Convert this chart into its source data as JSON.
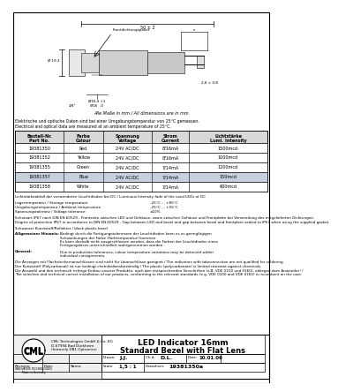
{
  "title": "LED Indicator 16mm\nStandard Bezel with Flat Lens",
  "company_name": "CML",
  "company_full": "CML Technologies GmbH & Co. KG\nD-67994 Bad Dürkheim\n(formerly DB1 Optronics)",
  "drawn_by": "J.J.",
  "checked_by": "D.L.",
  "date": "10.01.06",
  "scale": "1,5 : 1",
  "datasheet": "19381350a",
  "german_note1": "Elektrische und optische Daten sind bei einer Umgebungstemperatur von 25°C gemessen.",
  "english_note1": "Electrical and optical data are measured at an ambient temperature of 25°C.",
  "table_headers_line1": [
    "Bestell-Nr.",
    "Farbe",
    "Spannung",
    "Strom",
    "Lichtstärke"
  ],
  "table_headers_line2": [
    "Part No.",
    "Colour",
    "Voltage",
    "Current",
    "Lumi. Intensity"
  ],
  "table_rows": [
    [
      "19381350",
      "Red",
      "24V AC/DC",
      "8/16mA",
      "1500mcd"
    ],
    [
      "19381352",
      "Yellow",
      "24V AC/DC",
      "8/16mA",
      "1000mcd"
    ],
    [
      "19381355",
      "Green",
      "24V AC/DC",
      "7/14mA",
      "1200mcd"
    ],
    [
      "19381357",
      "Blue",
      "24V AC/DC",
      "7/14mA",
      "150mcd"
    ],
    [
      "19381358",
      "White",
      "24V AC/DC",
      "7/14mA",
      "600mcd"
    ]
  ],
  "row_colors": [
    "#ffffff",
    "#ffffff",
    "#ffffff",
    "#c8d0de",
    "#ffffff"
  ],
  "lumi_note": "Lichtstärkeabfall der verwendeten Leuchtdioden bei DC / Luminous Intensity fade of the used LEDs at DC",
  "storage_temp_label": "Lagertemperatur / Storage temperature",
  "storage_temp_value": "-25°C ... +85°C",
  "ambient_temp_label": "Umgebungstemperatur / Ambient temperature",
  "ambient_temp_value": "-25°C ... +55°C",
  "voltage_tol_label": "Spannungstoleranz / Voltage tolerance",
  "voltage_tol_value": "±10%",
  "ip_german": "Schutzart IP67 nach DIN EN 60529 - Frontseite zwischen LED und Gehäuse, sowie zwischen Gehäuse und Frontplatte bei Verwendung des mitgelieferten Dichtungen.",
  "ip_english": "Degree of protection IP67 in accordance to DIN EN 60529 - Gap between LED and bezel and gap between bezel and frontplate sealed to IP67 when using the supplied gasket.",
  "material_label": "Schwarzer Kunststoff/Reflektor / black plastic bezel",
  "allg_hinweise_label": "Allgemeiner Hinweis:",
  "allg_hinweise_text1": "Bedingt durch die Fertigungstoleranzen der Leuchtdioden kann es zu geringfügigen",
  "allg_hinweise_text2": "Schwankungen der Farbe (Farbtemperatur) kommen.",
  "allg_hinweise_text3": "Es kann deshalb nicht ausgeschlossen werden, dass die Farben der Leuchtdioden eines",
  "allg_hinweise_text4": "Fertigungsloses unterschiedlich wahrgenommen werden.",
  "general_label": "General:",
  "general_text1": "Due to production tolerances, colour temperature variations may be detected within",
  "general_text2": "individual consignments.",
  "note_flatpin": "Die Anzeigen mit Flachsteckernanschlüssen sind nicht für Lötanschlüsse geeignet / The indicators with tabconnection are not qualified for soldering.",
  "note_plastic": "Der Kunststoff (Polycarbonat) ist nur bedingt chemikaliensbeständig / The plastic (polycarbonate) is limited resistant against chemicals.",
  "note_selection1": "Die Auswahl und den technisch richtige Einbau unserer Produkte, nach den entsprechenden Vorschriften (z.B. VDE 0100 und 0160), obliegen dem Anwender! /",
  "note_selection2": "The selection and technical correct installation of our products, conforming to the relevant standards (e.g. VDE 0100 and VDE 0160) is incumbent on the user.",
  "all_dims_note": "Alle Maße in mm / All dimensions are in mm",
  "bg_color": "#ffffff"
}
